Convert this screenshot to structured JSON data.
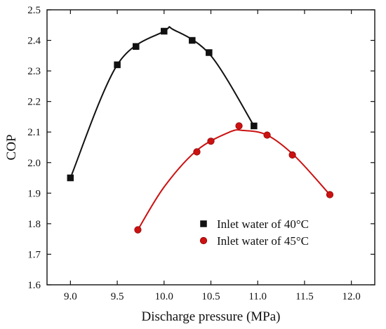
{
  "chart_data": {
    "type": "scatter",
    "xlabel": "Discharge pressure (MPa)",
    "ylabel": "COP",
    "xlim": [
      8.75,
      12.25
    ],
    "ylim": [
      1.6,
      2.5
    ],
    "xticks": [
      "9.0",
      "9.5",
      "10.0",
      "10.5",
      "11.0",
      "11.5",
      "12.0"
    ],
    "yticks": [
      "1.6",
      "1.7",
      "1.8",
      "1.9",
      "2.0",
      "2.1",
      "2.2",
      "2.3",
      "2.4",
      "2.5"
    ],
    "grid": false,
    "legend_position": "lower-center",
    "series": [
      {
        "name": "Inlet water of 40°C",
        "marker": "square",
        "color": "#111111",
        "points": [
          {
            "x": 9.0,
            "y": 1.95
          },
          {
            "x": 9.5,
            "y": 2.32
          },
          {
            "x": 9.7,
            "y": 2.38
          },
          {
            "x": 10.0,
            "y": 2.43
          },
          {
            "x": 10.3,
            "y": 2.4
          },
          {
            "x": 10.48,
            "y": 2.36
          },
          {
            "x": 10.96,
            "y": 2.12
          }
        ],
        "fit_curve": {
          "x": [
            9.0,
            9.5,
            10.0,
            10.1,
            10.5,
            10.96
          ],
          "y": [
            1.95,
            2.32,
            2.43,
            2.435,
            2.35,
            2.12
          ]
        }
      },
      {
        "name": "Inlet water of 45°C",
        "marker": "circle",
        "color": "#cc1111",
        "points": [
          {
            "x": 9.72,
            "y": 1.78
          },
          {
            "x": 10.35,
            "y": 2.035
          },
          {
            "x": 10.5,
            "y": 2.07
          },
          {
            "x": 10.8,
            "y": 2.12
          },
          {
            "x": 11.1,
            "y": 2.09
          },
          {
            "x": 11.37,
            "y": 2.025
          },
          {
            "x": 11.77,
            "y": 1.895
          }
        ],
        "fit_curve": {
          "x": [
            9.72,
            10.0,
            10.35,
            10.7,
            10.85,
            11.1,
            11.4,
            11.77
          ],
          "y": [
            1.78,
            1.92,
            2.04,
            2.1,
            2.105,
            2.09,
            2.02,
            1.895
          ]
        }
      }
    ]
  },
  "colors": {
    "series_1": "#111111",
    "series_2": "#cc1111",
    "axes": "#111111"
  }
}
